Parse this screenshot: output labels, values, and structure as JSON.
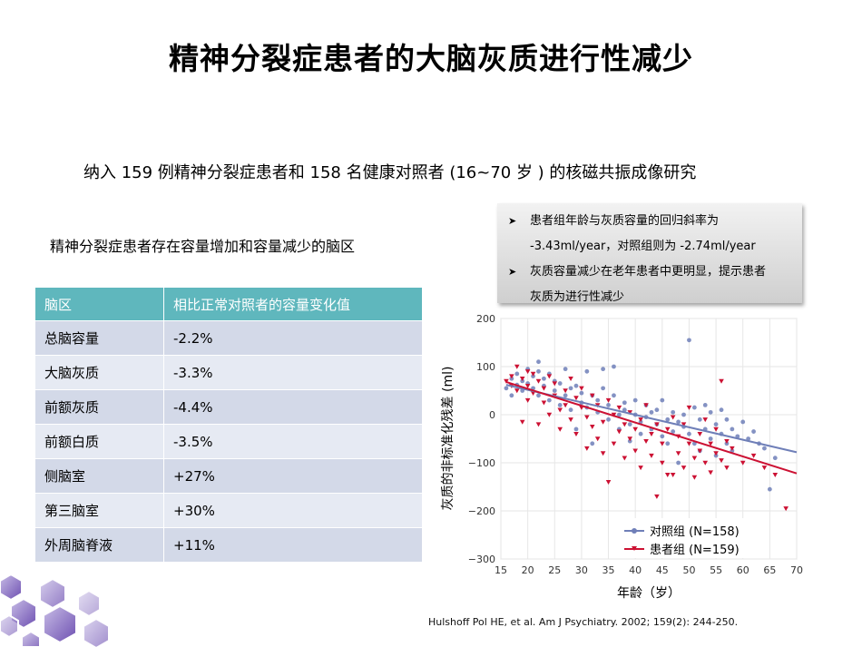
{
  "title": "精神分裂症患者的大脑灰质进行性减少",
  "intro": "纳入 159 例精神分裂症患者和 158 名健康对照者 (16~70 岁 ) 的核磁共振成像研究",
  "subheading": "精神分裂症患者存在容量增加和容量减少的脑区",
  "table": {
    "headers": [
      "脑区",
      "相比正常对照者的容量变化值"
    ],
    "rows": [
      [
        "总脑容量",
        "-2.2%"
      ],
      [
        "大脑灰质",
        "-3.3%"
      ],
      [
        "前额灰质",
        "-4.4%"
      ],
      [
        "前额白质",
        "-3.5%"
      ],
      [
        "侧脑室",
        "+27%"
      ],
      [
        "第三脑室",
        "+30%"
      ],
      [
        "外周脑脊液",
        "+11%"
      ]
    ]
  },
  "notes": [
    {
      "icon": "arrow-bullet-icon",
      "lines": [
        "患者组年龄与灰质容量的回归斜率为",
        "-3.43ml/year，对照组则为 -2.74ml/year"
      ]
    },
    {
      "icon": "arrow-bullet-icon",
      "lines": [
        "灰质容量减少在老年患者中更明显，提示患者",
        "灰质为进行性减少"
      ]
    }
  ],
  "citation": "Hulshoff Pol HE, et al. Am J Psychiatry. 2002; 159(2): 244-250.",
  "chart_data": {
    "type": "scatter",
    "xlabel": "年龄（岁）",
    "ylabel": "灰质的非标准化残差 (ml)",
    "xlim": [
      15,
      70
    ],
    "ylim": [
      -300,
      200
    ],
    "xticks": [
      15,
      20,
      25,
      30,
      35,
      40,
      45,
      50,
      55,
      60,
      65,
      70
    ],
    "yticks": [
      200,
      100,
      0,
      -100,
      -200,
      -300
    ],
    "grid": true,
    "legend_position": "bottom-right",
    "series": [
      {
        "name": "对照组 (N=158)",
        "color": "#6f7fb8",
        "marker": "circle",
        "fit_line": {
          "x": [
            16,
            70
          ],
          "y": [
            62,
            -78
          ]
        },
        "points": [
          [
            16,
            55
          ],
          [
            17,
            75
          ],
          [
            17,
            40
          ],
          [
            18,
            62
          ],
          [
            18,
            85
          ],
          [
            19,
            70
          ],
          [
            19,
            50
          ],
          [
            20,
            95
          ],
          [
            20,
            65
          ],
          [
            21,
            80
          ],
          [
            21,
            55
          ],
          [
            22,
            110
          ],
          [
            22,
            90
          ],
          [
            22,
            40
          ],
          [
            23,
            75
          ],
          [
            23,
            60
          ],
          [
            24,
            85
          ],
          [
            24,
            30
          ],
          [
            25,
            70
          ],
          [
            25,
            50
          ],
          [
            26,
            65
          ],
          [
            26,
            20
          ],
          [
            27,
            95
          ],
          [
            27,
            40
          ],
          [
            28,
            55
          ],
          [
            28,
            10
          ],
          [
            29,
            60
          ],
          [
            29,
            -30
          ],
          [
            30,
            45
          ],
          [
            30,
            25
          ],
          [
            31,
            90
          ],
          [
            31,
            15
          ],
          [
            32,
            -60
          ],
          [
            32,
            40
          ],
          [
            33,
            30
          ],
          [
            33,
            5
          ],
          [
            34,
            95
          ],
          [
            34,
            55
          ],
          [
            35,
            20
          ],
          [
            35,
            -10
          ],
          [
            36,
            100
          ],
          [
            36,
            40
          ],
          [
            37,
            0
          ],
          [
            37,
            -30
          ],
          [
            38,
            25
          ],
          [
            38,
            10
          ],
          [
            39,
            -20
          ],
          [
            39,
            -55
          ],
          [
            40,
            30
          ],
          [
            40,
            0
          ],
          [
            41,
            -15
          ],
          [
            41,
            -40
          ],
          [
            42,
            20
          ],
          [
            42,
            -5
          ],
          [
            43,
            -30
          ],
          [
            43,
            5
          ],
          [
            44,
            10
          ],
          [
            44,
            -20
          ],
          [
            45,
            -45
          ],
          [
            45,
            30
          ],
          [
            46,
            -10
          ],
          [
            46,
            -60
          ],
          [
            47,
            5
          ],
          [
            47,
            -35
          ],
          [
            48,
            -15
          ],
          [
            48,
            -100
          ],
          [
            49,
            0
          ],
          [
            49,
            -25
          ],
          [
            50,
            155
          ],
          [
            50,
            -40
          ],
          [
            51,
            15
          ],
          [
            51,
            -60
          ],
          [
            52,
            -10
          ],
          [
            52,
            -75
          ],
          [
            53,
            20
          ],
          [
            53,
            -30
          ],
          [
            54,
            -50
          ],
          [
            54,
            5
          ],
          [
            55,
            -20
          ],
          [
            55,
            -85
          ],
          [
            56,
            -40
          ],
          [
            56,
            10
          ],
          [
            57,
            -60
          ],
          [
            57,
            -10
          ],
          [
            58,
            -30
          ],
          [
            58,
            -75
          ],
          [
            59,
            -45
          ],
          [
            60,
            -15
          ],
          [
            61,
            -50
          ],
          [
            62,
            -35
          ],
          [
            63,
            -60
          ],
          [
            64,
            -70
          ],
          [
            65,
            -155
          ],
          [
            66,
            -90
          ]
        ]
      },
      {
        "name": "患者组 (N=159)",
        "color": "#cc1133",
        "marker": "triangle-down",
        "fit_line": {
          "x": [
            16,
            70
          ],
          "y": [
            68,
            -122
          ]
        },
        "points": [
          [
            16,
            70
          ],
          [
            17,
            60
          ],
          [
            17,
            80
          ],
          [
            18,
            100
          ],
          [
            18,
            50
          ],
          [
            19,
            75
          ],
          [
            19,
            -15
          ],
          [
            20,
            60
          ],
          [
            20,
            90
          ],
          [
            20,
            30
          ],
          [
            21,
            85
          ],
          [
            21,
            45
          ],
          [
            22,
            70
          ],
          [
            22,
            -20
          ],
          [
            23,
            55
          ],
          [
            23,
            25
          ],
          [
            24,
            80
          ],
          [
            24,
            0
          ],
          [
            25,
            40
          ],
          [
            25,
            65
          ],
          [
            26,
            10
          ],
          [
            26,
            -30
          ],
          [
            27,
            50
          ],
          [
            27,
            20
          ],
          [
            28,
            75
          ],
          [
            28,
            -10
          ],
          [
            29,
            35
          ],
          [
            29,
            -40
          ],
          [
            30,
            15
          ],
          [
            30,
            55
          ],
          [
            31,
            -5
          ],
          [
            31,
            -70
          ],
          [
            32,
            40
          ],
          [
            32,
            -25
          ],
          [
            33,
            -50
          ],
          [
            33,
            20
          ],
          [
            34,
            -15
          ],
          [
            34,
            -80
          ],
          [
            35,
            30
          ],
          [
            35,
            -140
          ],
          [
            36,
            0
          ],
          [
            36,
            -60
          ],
          [
            37,
            -35
          ],
          [
            37,
            15
          ],
          [
            38,
            -20
          ],
          [
            38,
            -90
          ],
          [
            39,
            -50
          ],
          [
            39,
            5
          ],
          [
            40,
            -75
          ],
          [
            40,
            -30
          ],
          [
            41,
            -10
          ],
          [
            41,
            -110
          ],
          [
            42,
            -55
          ],
          [
            42,
            20
          ],
          [
            43,
            -85
          ],
          [
            43,
            -40
          ],
          [
            44,
            -20
          ],
          [
            44,
            -170
          ],
          [
            45,
            -60
          ],
          [
            45,
            -100
          ],
          [
            46,
            -125
          ],
          [
            46,
            -30
          ],
          [
            47,
            -125
          ],
          [
            47,
            -5
          ],
          [
            48,
            -80
          ],
          [
            48,
            -45
          ],
          [
            49,
            -110
          ],
          [
            49,
            -20
          ],
          [
            50,
            -60
          ],
          [
            50,
            15
          ],
          [
            51,
            -90
          ],
          [
            51,
            -130
          ],
          [
            52,
            -40
          ],
          [
            52,
            -75
          ],
          [
            53,
            -100
          ],
          [
            53,
            -10
          ],
          [
            54,
            -60
          ],
          [
            54,
            -120
          ],
          [
            55,
            -80
          ],
          [
            55,
            -30
          ],
          [
            56,
            -95
          ],
          [
            56,
            70
          ],
          [
            57,
            -110
          ],
          [
            57,
            -55
          ],
          [
            58,
            -70
          ],
          [
            60,
            -100
          ],
          [
            62,
            -85
          ],
          [
            64,
            -110
          ],
          [
            66,
            -125
          ],
          [
            68,
            -195
          ]
        ]
      }
    ]
  }
}
